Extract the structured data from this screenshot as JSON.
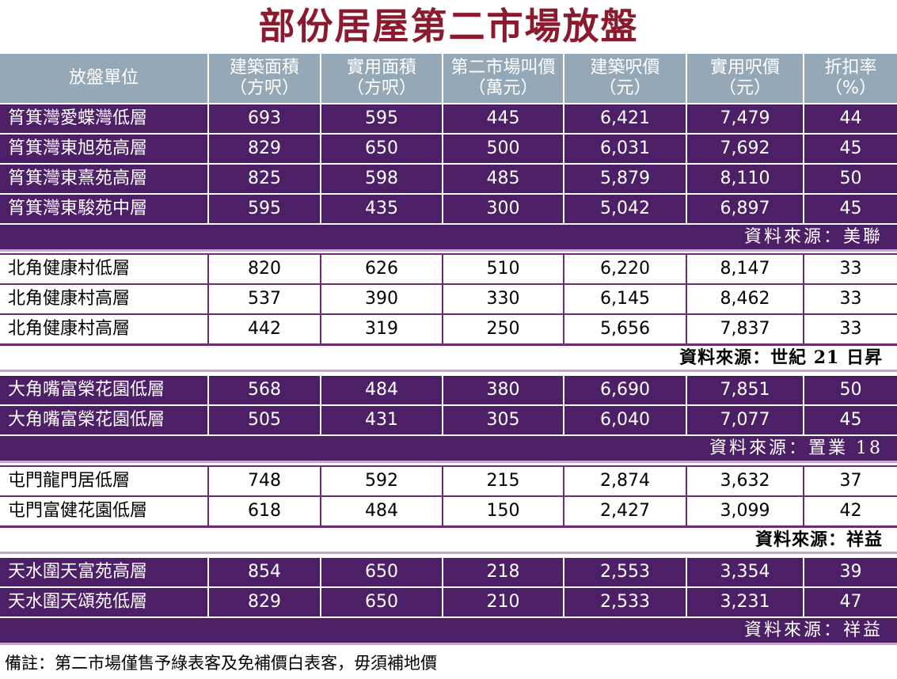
{
  "title": "部份居屋第二市場放盤",
  "headers": [
    {
      "line1": "放盤單位",
      "line2": ""
    },
    {
      "line1": "建築面積",
      "line2": "（方呎）"
    },
    {
      "line1": "實用面積",
      "line2": "（方呎）"
    },
    {
      "line1": "第二市場叫價",
      "line2": "（萬元）"
    },
    {
      "line1": "建築呎價",
      "line2": "（元）"
    },
    {
      "line1": "實用呎價",
      "line2": "（元）"
    },
    {
      "line1": "折扣率",
      "line2": "（%）"
    }
  ],
  "groups": [
    {
      "rows": [
        [
          "筲箕灣愛蝶灣低層",
          "693",
          "595",
          "445",
          "6,421",
          "7,479",
          "44"
        ],
        [
          "筲箕灣東旭苑高層",
          "829",
          "650",
          "500",
          "6,031",
          "7,692",
          "45"
        ],
        [
          "筲箕灣東熹苑高層",
          "825",
          "598",
          "485",
          "5,879",
          "8,110",
          "50"
        ],
        [
          "筲箕灣東駿苑中層",
          "595",
          "435",
          "300",
          "5,042",
          "6,897",
          "45"
        ]
      ],
      "source": "資料來源：美聯"
    },
    {
      "rows": [
        [
          "北角健康村低層",
          "820",
          "626",
          "510",
          "6,220",
          "8,147",
          "33"
        ],
        [
          "北角健康村高層",
          "537",
          "390",
          "330",
          "6,145",
          "8,462",
          "33"
        ],
        [
          "北角健康村高層",
          "442",
          "319",
          "250",
          "5,656",
          "7,837",
          "33"
        ]
      ],
      "source": "資料來源：世紀 21 日昇"
    },
    {
      "rows": [
        [
          "大角嘴富榮花園低層",
          "568",
          "484",
          "380",
          "6,690",
          "7,851",
          "50"
        ],
        [
          "大角嘴富榮花園低層",
          "505",
          "431",
          "305",
          "6,040",
          "7,077",
          "45"
        ]
      ],
      "source": "資料來源：置業 18"
    },
    {
      "rows": [
        [
          "屯門龍門居低層",
          "748",
          "592",
          "215",
          "2,874",
          "3,632",
          "37"
        ],
        [
          "屯門富健花園低層",
          "618",
          "484",
          "150",
          "2,427",
          "3,099",
          "42"
        ]
      ],
      "source": "資料來源：祥益"
    },
    {
      "rows": [
        [
          "天水圍天富苑高層",
          "854",
          "650",
          "218",
          "2,553",
          "3,354",
          "39"
        ],
        [
          "天水圍天頌苑低層",
          "829",
          "650",
          "210",
          "2,533",
          "3,231",
          "47"
        ]
      ],
      "source": "資料來源：祥益"
    }
  ],
  "note": "備註：第二市場僅售予綠表客及免補價白表客，毋須補地價"
}
